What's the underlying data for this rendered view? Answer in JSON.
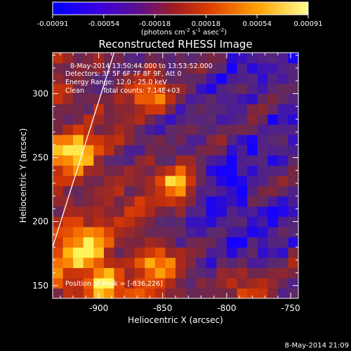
{
  "colorbar": {
    "ticks": [
      "-0.00091",
      "-0.00054",
      "-0.00018",
      "0.00018",
      "0.00054",
      "0.00091"
    ],
    "unit_main": "(photons cm",
    "unit_exp1": "-2",
    "unit_s": " s",
    "unit_exp2": "-1",
    "unit_asec": " asec",
    "unit_exp3": "-2",
    "unit_close": ")"
  },
  "chart_data": {
    "type": "heatmap",
    "title": "Reconstructed RHESSI Image",
    "xlabel": "Heliocentric X (arcsec)",
    "ylabel": "Heliocentric Y (arcsec)",
    "xlim": [
      -936,
      -744
    ],
    "ylim": [
      140,
      332
    ],
    "x_ticks": [
      -900,
      -850,
      -800,
      -750
    ],
    "y_ticks": [
      150,
      200,
      250,
      300
    ],
    "x_tick_labels": [
      "-900",
      "-850",
      "-800",
      "-750"
    ],
    "y_tick_labels": [
      "150",
      "200",
      "250",
      "300"
    ],
    "color_range": [
      -0.00091,
      0.00091
    ],
    "colormap": [
      "#1500ff",
      "#4a1c98",
      "#5a2a6c",
      "#7a2640",
      "#b02a14",
      "#d83a05",
      "#f56a00",
      "#ffb40c",
      "#fff25a"
    ],
    "peak": {
      "x": -836,
      "y": 226,
      "level": 0.97
    },
    "bright_sources": [
      {
        "x": -836,
        "y": 226,
        "level": 0.97
      },
      {
        "x": -920,
        "y": 255,
        "level": 0.86
      },
      {
        "x": -910,
        "y": 178,
        "level": 0.82
      },
      {
        "x": -855,
        "y": 168,
        "level": 0.78
      },
      {
        "x": -860,
        "y": 300,
        "level": 0.74
      },
      {
        "x": -895,
        "y": 150,
        "level": 0.76
      },
      {
        "x": -790,
        "y": 152,
        "level": 0.62
      }
    ],
    "limb_line": {
      "x": [
        -936,
        -888
      ],
      "y": [
        180,
        332
      ]
    },
    "annotations": [
      "8-May-2014 13:50:44.000 to 13:53:52.000",
      "Detectors: 3F 5F 6F 7F 8F 9F, Att 0",
      "Energy Range: 12.0 - 25.0 keV",
      "Clean",
      "Total counts: 7.14E+03",
      "Position of Peak = [-836,226]"
    ]
  },
  "footer_date": "8-May-2014 21:09"
}
